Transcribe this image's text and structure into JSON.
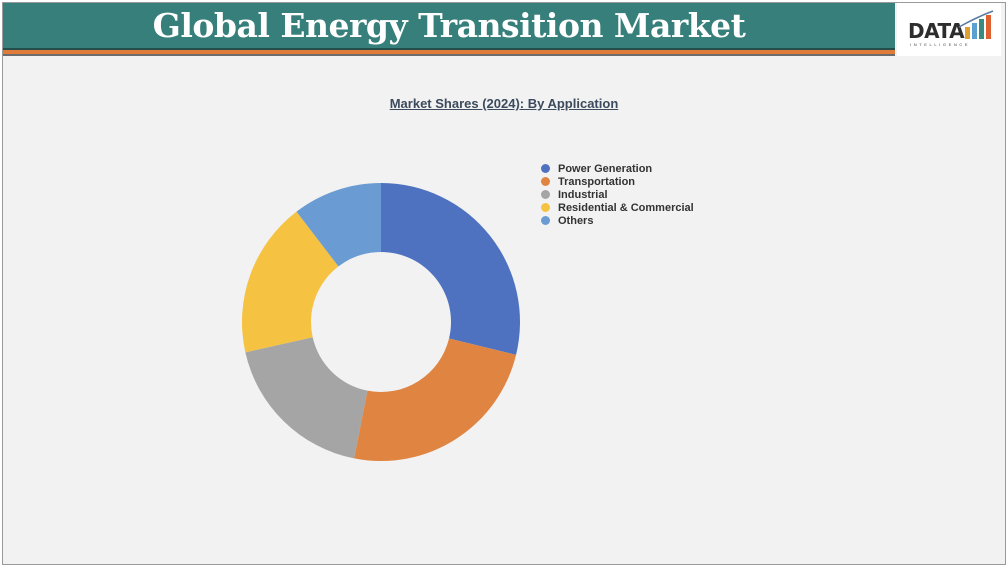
{
  "header": {
    "title": "Global Energy Transition Market",
    "logo_text": "DATA",
    "logo_subtext": "INTELLIGENCE"
  },
  "colors": {
    "header": "#367f7b",
    "stripe": "#e07b3a"
  },
  "chart_data": {
    "type": "pie",
    "style": "donut",
    "title": "Market Shares (2024): By Application",
    "legend_position": "right",
    "categories": [
      "Power Generation",
      "Transportation",
      "Industrial",
      "Residential & Commercial",
      "Others"
    ],
    "values": [
      28.8,
      24.3,
      18.4,
      18.1,
      10.4
    ],
    "unit": "%",
    "colors": [
      "#4e72c0",
      "#e08442",
      "#a5a5a5",
      "#f5c242",
      "#6a9bd3"
    ]
  }
}
